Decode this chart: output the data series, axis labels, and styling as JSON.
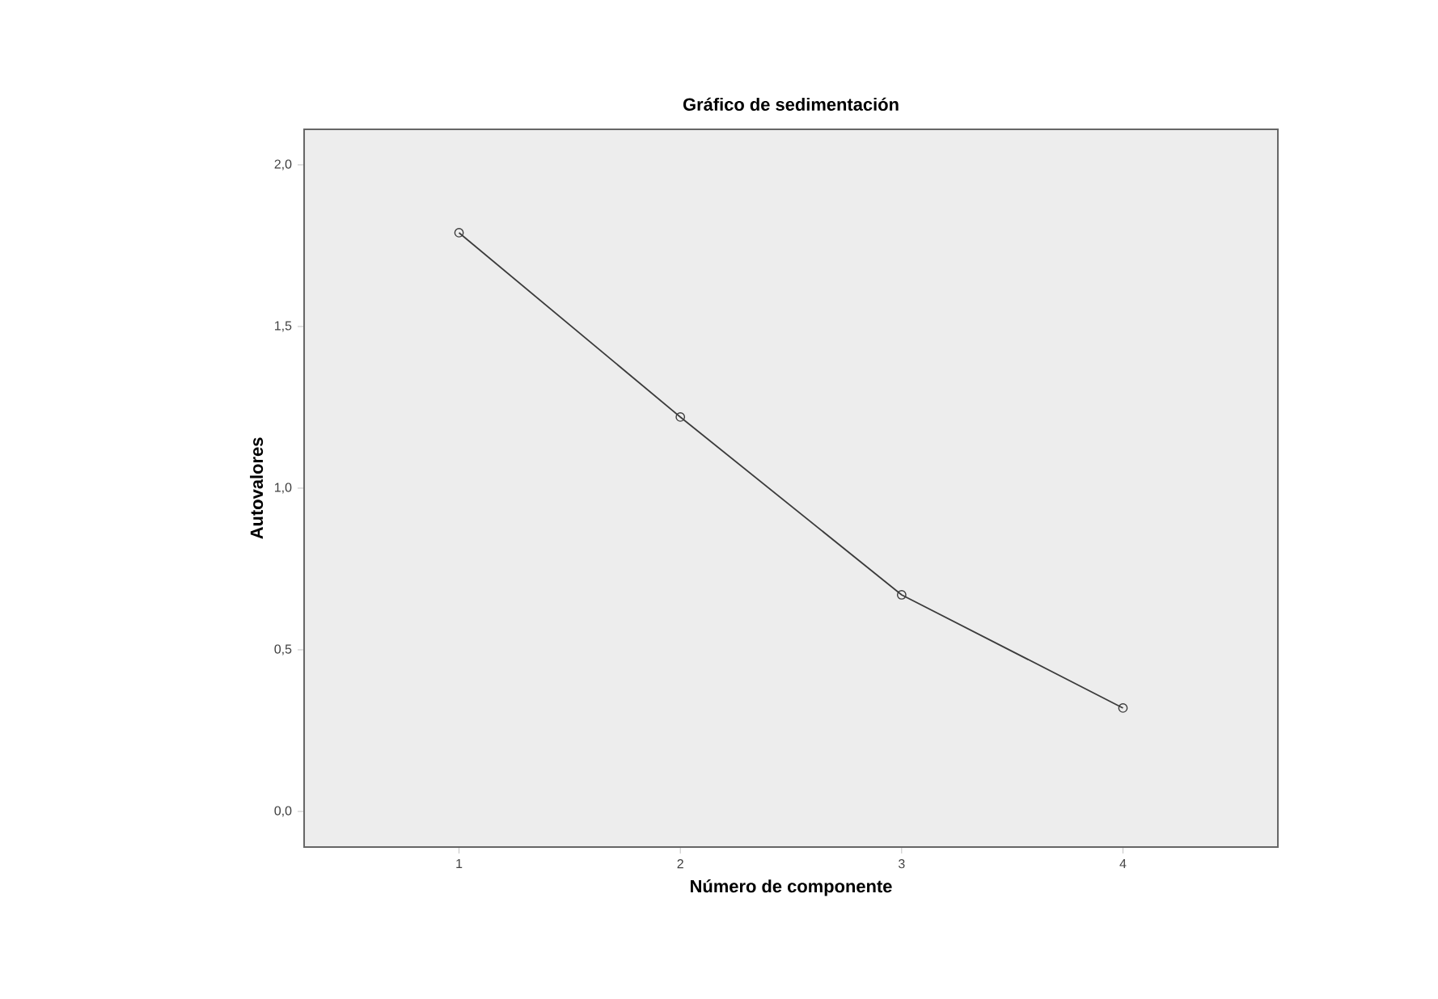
{
  "chart_data": {
    "type": "line",
    "title": "Gráfico de sedimentación",
    "xlabel": "Número de componente",
    "ylabel": "Autovalores",
    "x": [
      1,
      2,
      3,
      4
    ],
    "series": [
      {
        "color": "#3c3c3c",
        "values": [
          1.79,
          1.22,
          0.67,
          0.32
        ]
      }
    ],
    "xlim": [
      0.3,
      4.7
    ],
    "xticks": [
      1,
      2,
      3,
      4
    ],
    "ylim": [
      -0.11,
      2.11
    ],
    "yticks": [
      {
        "value": 0,
        "label": "0,0"
      },
      {
        "value": 0.5,
        "label": "0,5"
      },
      {
        "value": 1,
        "label": "1,0"
      },
      {
        "value": 1.5,
        "label": "1,5"
      },
      {
        "value": 2,
        "label": "2,0"
      }
    ],
    "marker": "circle",
    "line_style": "solid",
    "grid": false
  }
}
